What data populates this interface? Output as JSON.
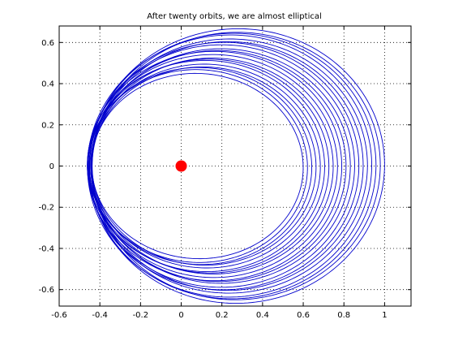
{
  "chart_data": {
    "type": "line",
    "title": "After twenty orbits, we are almost elliptical",
    "xlabel": "",
    "ylabel": "",
    "xlim": [
      -0.6,
      1.13
    ],
    "ylim": [
      -0.68,
      0.68
    ],
    "xticks": [
      -0.6,
      -0.4,
      -0.2,
      0,
      0.2,
      0.4,
      0.6,
      0.8,
      1
    ],
    "yticks": [
      -0.6,
      -0.4,
      -0.2,
      0,
      0.2,
      0.4,
      0.6
    ],
    "xtick_labels": [
      "-0.6",
      "-0.4",
      "-0.2",
      "0",
      "0.2",
      "0.4",
      "0.6",
      "0.8",
      "1"
    ],
    "ytick_labels": [
      "-0.6",
      "-0.4",
      "-0.2",
      "0",
      "0.2",
      "0.4",
      "0.6"
    ],
    "grid": true,
    "grid_style": "dotted",
    "orbit": {
      "color": "#0000cc",
      "num_orbits": 20,
      "periapsis_x": -0.45,
      "apoapsis_x_start": 1.0,
      "apoapsis_x_end": 0.6,
      "periapsis_y_extent": 0.68
    },
    "central_body": {
      "x": 0,
      "y": 0,
      "color": "#ff0000"
    }
  }
}
